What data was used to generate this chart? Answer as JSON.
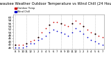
{
  "title": "Milwaukee Weather Outdoor Temperature vs Wind Chill (24 Hours)",
  "title_fontsize": 3.8,
  "background_color": "#ffffff",
  "grid_color": "#aaaaaa",
  "x_labels": [
    "8",
    "9",
    "10",
    "11",
    "12",
    "1",
    "2",
    "3",
    "4",
    "5",
    "6",
    "7",
    "8",
    "9",
    "10",
    "11",
    "12",
    "1",
    "2",
    "3",
    "4",
    "5",
    "6",
    "7"
  ],
  "x_ticks": [
    0,
    1,
    2,
    3,
    4,
    5,
    6,
    7,
    8,
    9,
    10,
    11,
    12,
    13,
    14,
    15,
    16,
    17,
    18,
    19,
    20,
    21,
    22,
    23
  ],
  "ylim": [
    39,
    62
  ],
  "y_ticks": [
    40,
    42,
    44,
    46,
    48,
    50,
    52,
    54,
    56,
    58,
    60
  ],
  "y_tick_fontsize": 3.0,
  "x_tick_fontsize": 2.8,
  "vgrid_positions": [
    0,
    3,
    6,
    9,
    12,
    15,
    18,
    21
  ],
  "temp_x": [
    0,
    1,
    2,
    3,
    4,
    5,
    6,
    7,
    8,
    9,
    10,
    11,
    12,
    13,
    14,
    15,
    16,
    17,
    18,
    19,
    20,
    21,
    22,
    23
  ],
  "temp_y": [
    42,
    42,
    42,
    43,
    44,
    45,
    47,
    50,
    53,
    55,
    57,
    57,
    56,
    55,
    54,
    56,
    58,
    56,
    54,
    52,
    50,
    49,
    48,
    47
  ],
  "wind_x": [
    0,
    1,
    2,
    3,
    4,
    5,
    6,
    7,
    8,
    9,
    10,
    11,
    12,
    13,
    14,
    15,
    16,
    17,
    18,
    19,
    20,
    21,
    22,
    23
  ],
  "wind_y": [
    40,
    40,
    40,
    41,
    43,
    43,
    45,
    46,
    48,
    50,
    52,
    51,
    50,
    49,
    48,
    50,
    53,
    51,
    49,
    47,
    45,
    44,
    43,
    42
  ],
  "marker_x": [
    0,
    3,
    6,
    9,
    12,
    15,
    18,
    21
  ],
  "marker_y": [
    42,
    43,
    47,
    55,
    56,
    56,
    54,
    49
  ],
  "temp_color": "#cc0000",
  "wind_color": "#0000cc",
  "marker_color": "#000000",
  "dot_size": 1.5,
  "marker_size": 2.0,
  "legend_temp": "Outdoor Temp",
  "legend_wind": "Wind Chill"
}
